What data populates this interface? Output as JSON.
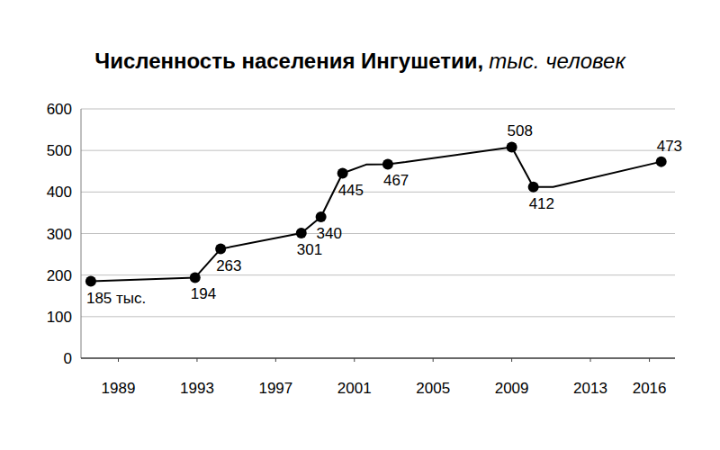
{
  "chart_data": {
    "type": "line",
    "title": "Численность населения Ингушетии,",
    "subtitle": "тыс. человек",
    "x": [
      1987.6,
      1992.9,
      1994.2,
      1998.3,
      1999.3,
      2000.4,
      2001.6,
      2002.7,
      2003.6,
      2009.0,
      2010.1,
      2011.1,
      2016.6
    ],
    "values": [
      185,
      194,
      263,
      301,
      340,
      445,
      466,
      467,
      472,
      508,
      412,
      412,
      473
    ],
    "value_labels": [
      "185 тыс.",
      "194",
      "263",
      "301",
      "340",
      "445",
      null,
      "467",
      null,
      "508",
      "412",
      null,
      "473"
    ],
    "color": "#000000",
    "marker": "circle",
    "data_labels": true,
    "xlim": [
      1987.1,
      2017.3
    ],
    "xticks": [
      1989,
      1993,
      1997,
      2001,
      2005,
      2009,
      2013,
      2016
    ],
    "ylim": [
      0,
      600
    ],
    "yticks": [
      0,
      100,
      200,
      300,
      400,
      500,
      600
    ],
    "grid": true
  }
}
